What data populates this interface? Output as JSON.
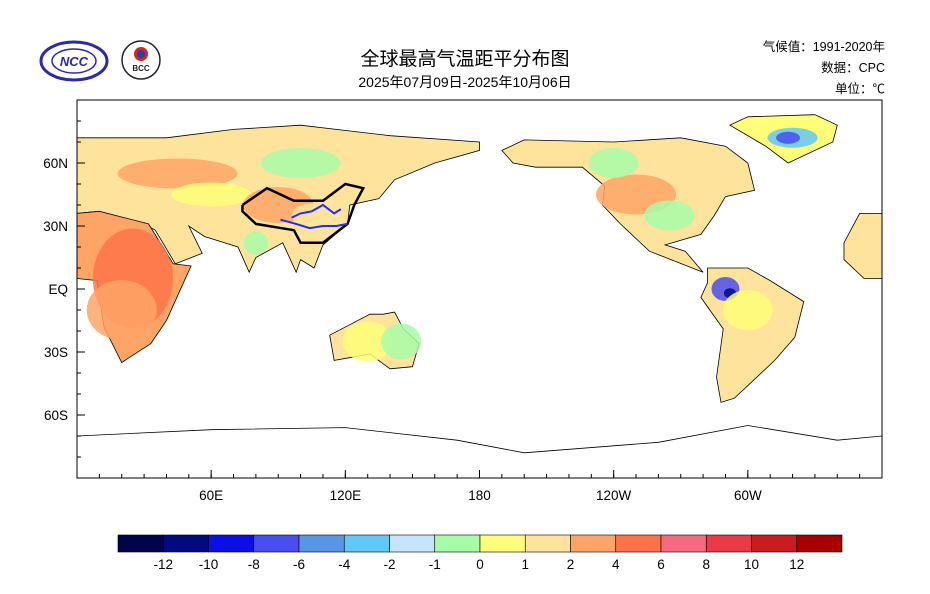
{
  "header": {
    "title": "全球最高气温距平分布图",
    "subtitle": "2025年07月09日-2025年10月06日",
    "climatology": "气候值：1991-2020年",
    "data_source": "数据：CPC",
    "unit": "单位：℃",
    "logo_left": "NCC",
    "logo_right": "BCC"
  },
  "chart_data": {
    "type": "heatmap",
    "title": "全球最高气温距平分布图",
    "projection": "equirectangular, centered 180",
    "x_ticks": [
      {
        "lon": 60,
        "label": "60E"
      },
      {
        "lon": 120,
        "label": "120E"
      },
      {
        "lon": 180,
        "label": "180"
      },
      {
        "lon": 240,
        "label": "120W"
      },
      {
        "lon": 300,
        "label": "60W"
      }
    ],
    "y_ticks": [
      {
        "lat": 60,
        "label": "60N"
      },
      {
        "lat": 30,
        "label": "30N"
      },
      {
        "lat": 0,
        "label": "EQ"
      },
      {
        "lat": -30,
        "label": "30S"
      },
      {
        "lat": -60,
        "label": "60S"
      }
    ],
    "xlim": [
      0,
      360
    ],
    "ylim": [
      -90,
      90
    ],
    "colorbar": {
      "levels": [
        "-12",
        "-10",
        "-8",
        "-6",
        "-4",
        "-2",
        "-1",
        "0",
        "1",
        "2",
        "4",
        "6",
        "8",
        "10",
        "12"
      ],
      "colors": [
        "#03034a",
        "#030a80",
        "#0c0ee6",
        "#4a4ef0",
        "#5696e3",
        "#62c8f8",
        "#c6e4fb",
        "#a8fca8",
        "#fefe78",
        "#fde39c",
        "#fea466",
        "#fe744a",
        "#f46a80",
        "#ea3a48",
        "#c81c20",
        "#a80002"
      ]
    },
    "highlights": [
      {
        "region": "Greenland",
        "anomaly_range": "-2 to -6"
      },
      {
        "region": "Northwestern South America",
        "anomaly_range": "-4 to -10"
      },
      {
        "region": "Africa interior",
        "anomaly_range": "2 to 6"
      },
      {
        "region": "Western Europe / Eastern Europe",
        "anomaly_range": "2 to 4"
      }
    ]
  }
}
